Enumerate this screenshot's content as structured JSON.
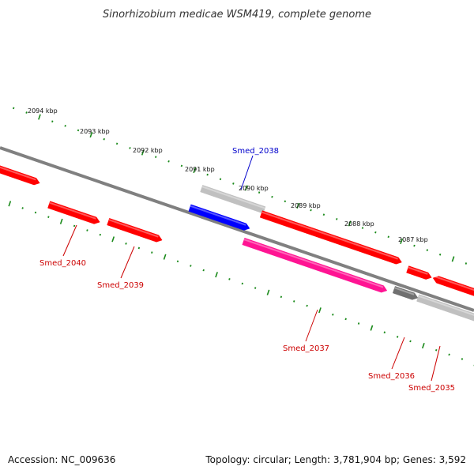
{
  "title": "Sinorhizobium medicae WSM419, complete genome",
  "footer": {
    "accession": "Accession: NC_009636",
    "summary": "Topology: circular; Length: 3,781,904 bp; Genes: 3,592"
  },
  "colors": {
    "backbone": "#808080",
    "tick": "#1a8a1a",
    "gene_red": "#ff0000",
    "gene_blue": "#0000ff",
    "gene_magenta": "#ff1493",
    "gene_lightgray": "#c0c0c0",
    "gene_darkgray": "#707070",
    "label_red": "#cc0000",
    "label_blue": "#0000cc"
  },
  "kbp_labels": [
    "2094 kbp",
    "2093 kbp",
    "2092 kbp",
    "2091 kbp",
    "2090 kbp",
    "2089 kbp",
    "2088 kbp",
    "2087 kbp"
  ],
  "genes": [
    {
      "label": "Smed_2040",
      "color": "red",
      "label_color": "red"
    },
    {
      "label": "Smed_2039",
      "color": "red",
      "label_color": "red"
    },
    {
      "label": "Smed_2038",
      "color": "blue",
      "label_color": "blue"
    },
    {
      "label": "Smed_2037",
      "color": "magenta",
      "label_color": "red"
    },
    {
      "label": "Smed_2036",
      "color": "darkgray",
      "label_color": "red"
    },
    {
      "label": "Smed_2035",
      "color": "lightgray",
      "label_color": "red"
    }
  ]
}
